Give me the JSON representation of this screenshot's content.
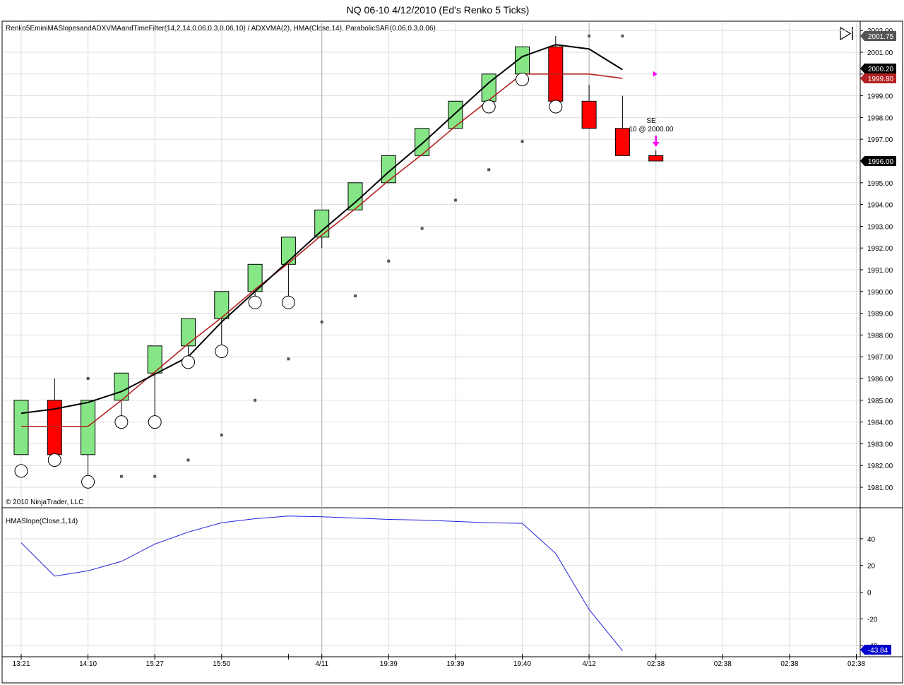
{
  "title": "NQ 06-10  4/12/2010 (Ed's Renko 5 Ticks)",
  "indicator_label": "Renko5EminiMASlopesandADXVMAandTimeFilter(14,2,14,0.06,0.3,0.06,10) / ADXVMA(2), HMA(Close,14), ParabolicSAR(0.06,0.3,0.06)",
  "copyright": "© 2010 NinjaTrader, LLC",
  "lower_label": "HMASlope(Close,1,14)",
  "colors": {
    "up_candle": "#86e686",
    "down_candle": "#ff0000",
    "hma": "#000000",
    "adxvma": "#b22222",
    "psar": "#555555",
    "slope": "#2222dd",
    "marker": "#ff00ff",
    "grid": "#dddddd"
  },
  "chart_data": [
    {
      "type": "candlestick",
      "ylim": [
        1980.3,
        2002.3
      ],
      "y_ticks": [
        "1981.00",
        "1982.00",
        "1983.00",
        "1984.00",
        "1985.00",
        "1986.00",
        "1987.00",
        "1988.00",
        "1989.00",
        "1990.00",
        "1991.00",
        "1992.00",
        "1993.00",
        "1994.00",
        "1995.00",
        "1996.00",
        "1997.00",
        "1998.00",
        "1999.00",
        "2000.00",
        "2001.00",
        "2002.00"
      ],
      "x_labels": [
        {
          "i": 0,
          "label": "13:21"
        },
        {
          "i": 2,
          "label": "14:10"
        },
        {
          "i": 4,
          "label": "15:27"
        },
        {
          "i": 6,
          "label": "15:50"
        },
        {
          "i": 9,
          "label": "4/11"
        },
        {
          "i": 11,
          "label": "19:39"
        },
        {
          "i": 13,
          "label": "19:39"
        },
        {
          "i": 15,
          "label": "19:40"
        },
        {
          "i": 17,
          "label": "4/12"
        },
        {
          "i": 19,
          "label": "02:38"
        },
        {
          "i": 21,
          "label": "02:38"
        },
        {
          "i": 23,
          "label": "02:38"
        },
        {
          "i": 25,
          "label": "02:38"
        }
      ],
      "candles": [
        {
          "o": 1982.5,
          "c": 1985.0,
          "h": 1985.0,
          "l": 1982.5
        },
        {
          "o": 1985.0,
          "c": 1982.5,
          "h": 1986.0,
          "l": 1982.5
        },
        {
          "o": 1982.5,
          "c": 1985.0,
          "h": 1985.0,
          "l": 1981.5
        },
        {
          "o": 1985.0,
          "c": 1986.25,
          "h": 1986.25,
          "l": 1984.25
        },
        {
          "o": 1986.25,
          "c": 1987.5,
          "h": 1987.5,
          "l": 1984.25
        },
        {
          "o": 1987.5,
          "c": 1988.75,
          "h": 1988.75,
          "l": 1987.0
        },
        {
          "o": 1988.75,
          "c": 1990.0,
          "h": 1990.0,
          "l": 1987.5
        },
        {
          "o": 1990.0,
          "c": 1991.25,
          "h": 1991.25,
          "l": 1989.75
        },
        {
          "o": 1991.25,
          "c": 1992.5,
          "h": 1992.5,
          "l": 1989.75
        },
        {
          "o": 1992.5,
          "c": 1993.75,
          "h": 1993.75,
          "l": 1992.0
        },
        {
          "o": 1993.75,
          "c": 1995.0,
          "h": 1995.0,
          "l": 1993.75
        },
        {
          "o": 1995.0,
          "c": 1996.25,
          "h": 1996.25,
          "l": 1995.0
        },
        {
          "o": 1996.25,
          "c": 1997.5,
          "h": 1997.5,
          "l": 1996.25
        },
        {
          "o": 1997.5,
          "c": 1998.75,
          "h": 1998.75,
          "l": 1997.5
        },
        {
          "o": 1998.75,
          "c": 2000.0,
          "h": 2000.0,
          "l": 1998.75
        },
        {
          "o": 2000.0,
          "c": 2001.25,
          "h": 2001.25,
          "l": 2000.0
        },
        {
          "o": 2001.25,
          "c": 1998.75,
          "h": 2001.75,
          "l": 1998.75
        },
        {
          "o": 1998.75,
          "c": 1997.5,
          "h": 1999.5,
          "l": 1997.5
        },
        {
          "o": 1997.5,
          "c": 1996.25,
          "h": 1999.0,
          "l": 1996.25
        },
        {
          "o": 1996.25,
          "c": 1996.0,
          "h": 1996.5,
          "l": 1996.0
        }
      ],
      "hma": [
        1984.4,
        1984.6,
        1984.9,
        1985.4,
        1986.2,
        1987.0,
        1988.6,
        1990.0,
        1991.4,
        1992.8,
        1994.1,
        1995.5,
        1996.8,
        1998.2,
        1999.6,
        2000.8,
        2001.35,
        2001.15,
        2000.2
      ],
      "adxvma": [
        1983.8,
        1983.8,
        1983.8,
        1985.0,
        1986.3,
        1987.6,
        1988.8,
        1990.1,
        1991.3,
        1992.6,
        1993.8,
        1995.1,
        1996.3,
        1997.6,
        1998.8,
        2000.0,
        2000.0,
        2000.0,
        1999.8
      ],
      "psar_circles": [
        {
          "i": 0,
          "y": 1981.75
        },
        {
          "i": 1,
          "y": 1982.25
        },
        {
          "i": 2,
          "y": 1981.25
        },
        {
          "i": 3,
          "y": 1984.0
        },
        {
          "i": 4,
          "y": 1984.0
        },
        {
          "i": 5,
          "y": 1986.75
        },
        {
          "i": 6,
          "y": 1987.25
        },
        {
          "i": 7,
          "y": 1989.5
        },
        {
          "i": 8,
          "y": 1989.5
        },
        {
          "i": 14,
          "y": 1998.5
        },
        {
          "i": 15,
          "y": 1999.75
        },
        {
          "i": 16,
          "y": 1998.5
        }
      ],
      "psar_dots": [
        {
          "i": 2,
          "y": 1986.0
        },
        {
          "i": 3,
          "y": 1981.5
        },
        {
          "i": 4,
          "y": 1981.5
        },
        {
          "i": 5,
          "y": 1982.25
        },
        {
          "i": 6,
          "y": 1983.4
        },
        {
          "i": 7,
          "y": 1985.0
        },
        {
          "i": 8,
          "y": 1986.9
        },
        {
          "i": 9,
          "y": 1988.6
        },
        {
          "i": 10,
          "y": 1989.8
        },
        {
          "i": 11,
          "y": 1991.4
        },
        {
          "i": 12,
          "y": 1992.9
        },
        {
          "i": 13,
          "y": 1994.2
        },
        {
          "i": 14,
          "y": 1995.6
        },
        {
          "i": 15,
          "y": 1996.9
        },
        {
          "i": 17,
          "y": 2001.75
        },
        {
          "i": 18,
          "y": 2001.75
        }
      ],
      "price_labels": [
        {
          "text": "2001.75",
          "value": 2001.75,
          "bg": "#555555"
        },
        {
          "text": "2000.20",
          "value": 2000.2,
          "bg": "#000000"
        },
        {
          "text": "1999.80",
          "value": 1999.8,
          "bg": "#b22222"
        },
        {
          "text": "1996.00",
          "value": 1996.0,
          "bg": "#000000"
        }
      ],
      "annotations": {
        "signal": "SE",
        "fill": "10 @ 2000.00"
      }
    },
    {
      "type": "line",
      "ylim": [
        -43.84,
        60
      ],
      "y_ticks": [
        "40",
        "20",
        "0",
        "-20",
        "-40"
      ],
      "series": [
        {
          "values": [
            37,
            12,
            16,
            23,
            36,
            45,
            52,
            55,
            57,
            56.5,
            55.5,
            54.5,
            54,
            53,
            52,
            51.5,
            29,
            -13,
            -43.84
          ]
        }
      ],
      "value_label": "-43.84"
    }
  ]
}
